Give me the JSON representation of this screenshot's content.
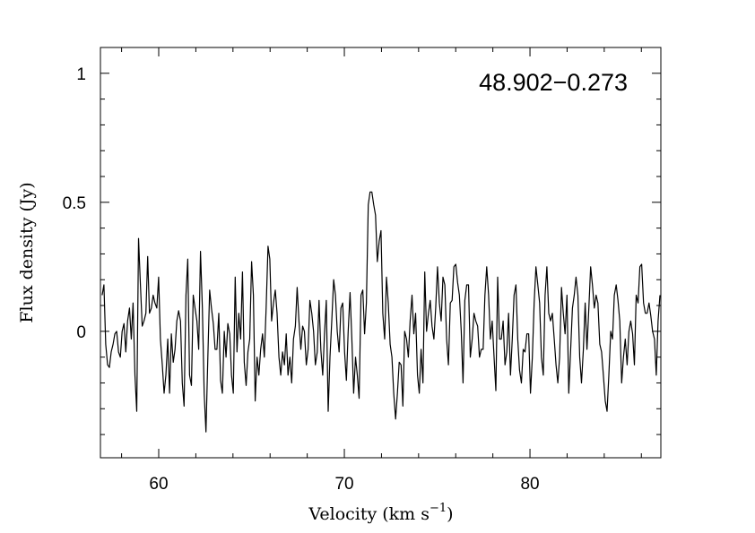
{
  "chart_data": {
    "type": "line",
    "title": "48.902−0.273",
    "xlabel_main": "Velocity (km s",
    "xlabel_sup": "−1",
    "xlabel_close": ")",
    "ylabel": "Flux density (Jy)",
    "xlim": [
      56.86,
      87.05
    ],
    "ylim": [
      -0.49,
      1.1
    ],
    "x_major_ticks": [
      60,
      70,
      80
    ],
    "x_minor_step": 2,
    "y_major_ticks": [
      0,
      0.5,
      1
    ],
    "y_tick_labels": [
      "0",
      "0.5",
      "1"
    ],
    "x_tick_labels": [
      "60",
      "70",
      "80"
    ],
    "y_minor_step": 0.1,
    "grid": false,
    "series": [
      {
        "name": "spectrum",
        "color": "#000000",
        "x_range": [
          56.95,
          87.0
        ],
        "values": [
          0.14,
          0.18,
          -0.05,
          -0.13,
          -0.14,
          -0.08,
          -0.05,
          -0.01,
          0,
          -0.08,
          -0.1,
          0,
          0.03,
          -0.08,
          0.04,
          0.09,
          -0.03,
          0.11,
          -0.17,
          -0.31,
          0.36,
          0.18,
          0.02,
          0.04,
          0.07,
          0.29,
          0.07,
          0.09,
          0.14,
          0.11,
          0.09,
          0.21,
          -0.03,
          -0.13,
          -0.24,
          -0.17,
          -0.03,
          -0.24,
          -0.01,
          -0.12,
          -0.07,
          0.04,
          0.08,
          0.04,
          -0.2,
          -0.29,
          0.14,
          0.28,
          -0.17,
          -0.21,
          0.14,
          0.09,
          0.04,
          -0.07,
          0.31,
          0.09,
          -0.24,
          -0.39,
          -0.1,
          0.16,
          0.09,
          0.03,
          -0.07,
          -0.07,
          0.07,
          -0.19,
          -0.24,
          0,
          -0.1,
          0.03,
          -0.01,
          -0.17,
          -0.24,
          0.21,
          -0.08,
          0.07,
          -0.03,
          0.23,
          -0.12,
          -0.21,
          -0.08,
          -0.03,
          0.27,
          0.14,
          -0.27,
          -0.1,
          -0.17,
          -0.07,
          -0.01,
          -0.1,
          0.09,
          0.33,
          0.28,
          0.04,
          0.11,
          0.16,
          0.07,
          -0.1,
          -0.17,
          -0.08,
          -0.13,
          -0.01,
          -0.17,
          -0.1,
          -0.2,
          -0.03,
          0.02,
          0.17,
          0.04,
          -0.07,
          0.02,
          0,
          -0.13,
          -0.07,
          0.12,
          0.07,
          0,
          -0.13,
          -0.08,
          0.12,
          -0.07,
          -0.17,
          -0.01,
          0.12,
          -0.31,
          -0.1,
          0.04,
          0.2,
          0.14,
          0,
          -0.08,
          0.09,
          0.11,
          -0.08,
          -0.19,
          0,
          0.15,
          -0.03,
          -0.24,
          -0.1,
          -0.17,
          -0.26,
          0.14,
          0.16,
          -0.01,
          0.11,
          0.49,
          0.54,
          0.54,
          0.49,
          0.45,
          0.27,
          0.35,
          0.39,
          0.07,
          -0.03,
          0.21,
          0.11,
          -0.05,
          -0.1,
          -0.24,
          -0.34,
          -0.24,
          -0.12,
          -0.13,
          -0.29,
          0,
          -0.03,
          -0.1,
          0.04,
          0.14,
          -0.01,
          0.07,
          -0.17,
          -0.24,
          -0.07,
          -0.2,
          0.23,
          0,
          0.07,
          0.12,
          0.02,
          -0.03,
          0.09,
          0.25,
          0.11,
          0.04,
          0.21,
          0.18,
          -0.03,
          -0.13,
          0.11,
          0.12,
          0.25,
          0.26,
          0.19,
          0.14,
          0,
          -0.2,
          0.12,
          0.18,
          0.18,
          -0.1,
          -0.03,
          0.07,
          0.04,
          0.02,
          -0.1,
          -0.07,
          -0.07,
          0.14,
          0.25,
          0.14,
          -0.03,
          0.04,
          -0.1,
          -0.23,
          0.21,
          -0.03,
          -0.03,
          0.04,
          -0.13,
          -0.08,
          0.07,
          -0.17,
          -0.03,
          0.14,
          0.18,
          -0.03,
          -0.15,
          -0.2,
          -0.07,
          -0.08,
          -0.01,
          -0.01,
          -0.24,
          -0.1,
          0.11,
          0.25,
          0.18,
          0.11,
          -0.1,
          -0.17,
          0.14,
          0.25,
          0.07,
          0.04,
          0.07,
          -0.03,
          -0.13,
          -0.2,
          -0.1,
          0.17,
          0.07,
          -0.01,
          0.14,
          -0.24,
          -0.08,
          0.09,
          0.14,
          0.21,
          0.14,
          -0.1,
          -0.2,
          -0.07,
          0.11,
          -0.07,
          0.09,
          0.25,
          0.18,
          0.09,
          0.14,
          0.11,
          -0.05,
          -0.08,
          -0.17,
          -0.27,
          -0.31,
          -0.17,
          0,
          -0.03,
          0.14,
          0.18,
          0.12,
          0.04,
          -0.2,
          -0.1,
          -0.03,
          -0.13,
          0,
          0.04,
          -0.01,
          -0.13,
          0.14,
          0.11,
          0.25,
          0.26,
          0.11,
          0.07,
          0.07,
          0.11,
          0.06,
          0,
          -0.03,
          -0.17,
          0.04,
          0.14
        ]
      }
    ]
  }
}
